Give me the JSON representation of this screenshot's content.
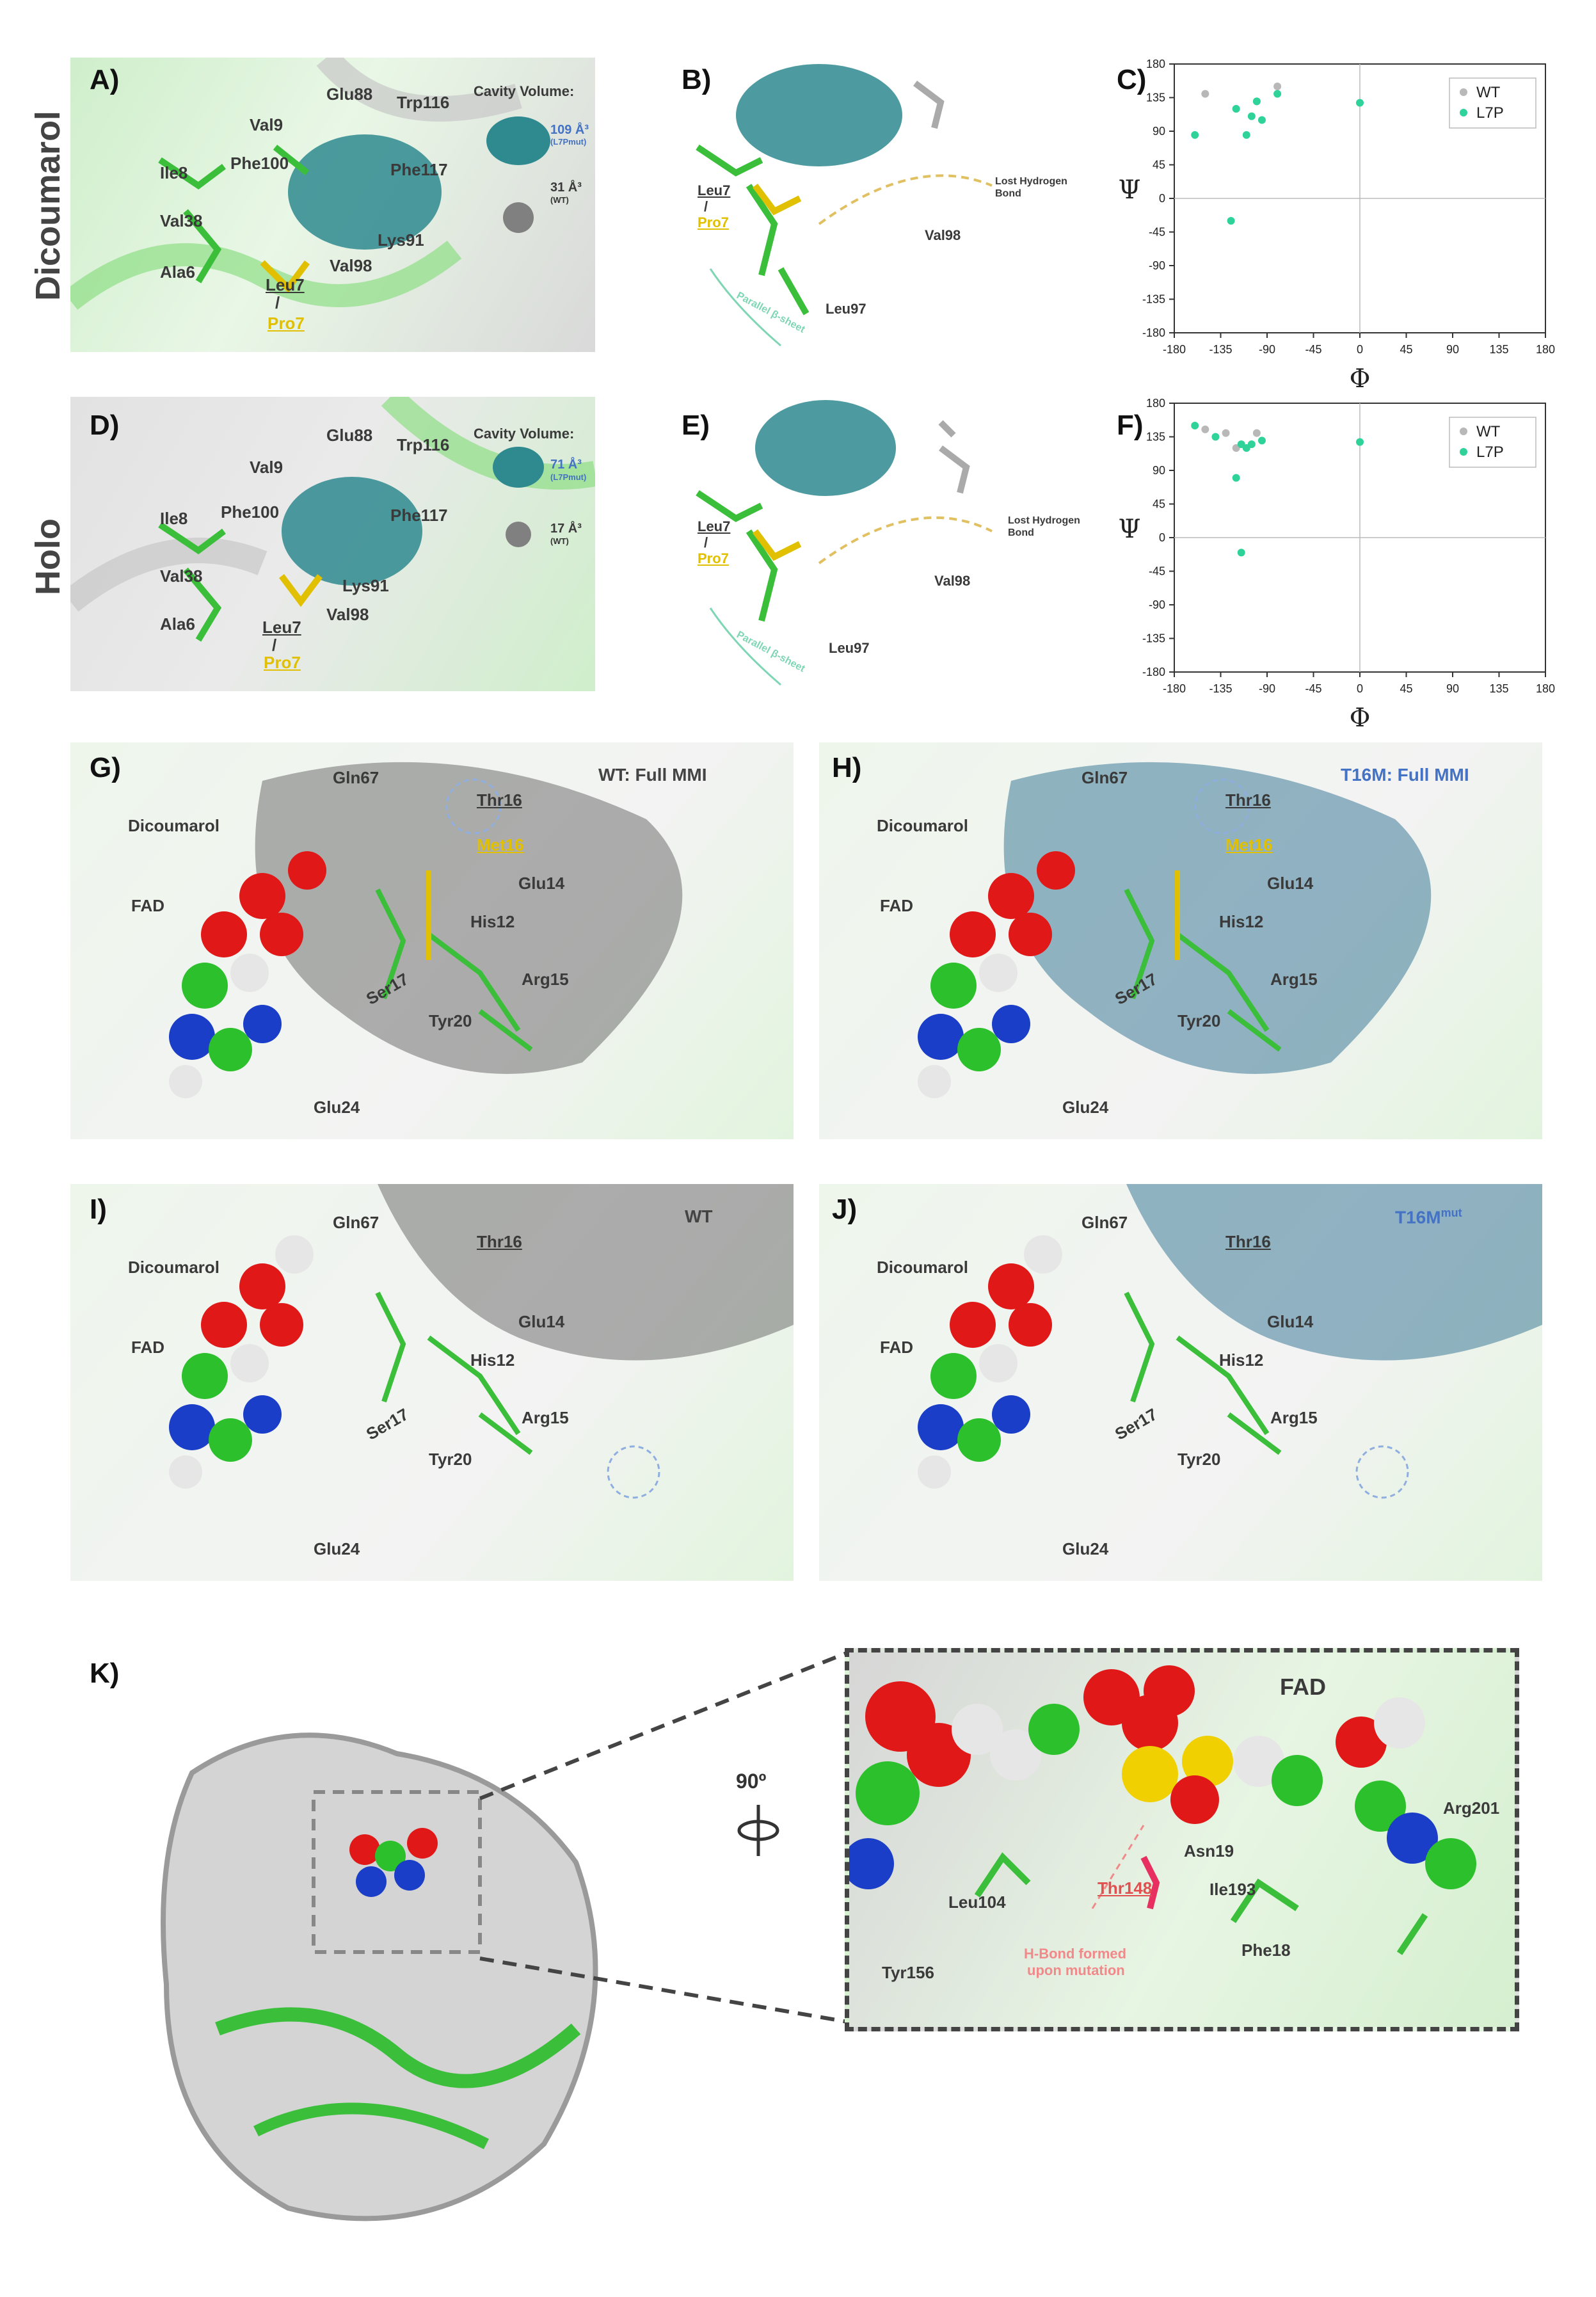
{
  "rows": {
    "dicoumarol": "Dicoumarol",
    "holo": "Holo"
  },
  "panels": {
    "A": {
      "letter": "A)",
      "labels": [
        "Glu88",
        "Trp116",
        "Val9",
        "Ile8",
        "Phe100",
        "Phe117",
        "Val38",
        "Lys91",
        "Ala6",
        "Leu7",
        "/",
        "Pro7",
        "Val98"
      ],
      "cavity_title": "Cavity Volume:",
      "cav_mut": "109 Å³",
      "cav_mut_sub": "(L7Pmut)",
      "cav_wt": "31 Å³",
      "cav_wt_sub": "(WT)"
    },
    "B": {
      "letter": "B)",
      "lost": "Lost Hydrogen",
      "lost2": "Bond",
      "leu7": "Leu7",
      "slash": "/",
      "pro7": "Pro7",
      "val98": "Val98",
      "leu97": "Leu97",
      "sheet": "Parallel β-sheet"
    },
    "D": {
      "letter": "D)",
      "labels": [
        "Glu88",
        "Trp116",
        "Val9",
        "Ile8",
        "Phe100",
        "Phe117",
        "Val38",
        "Lys91",
        "Val98",
        "Ala6",
        "Leu7",
        "/",
        "Pro7"
      ],
      "cavity_title": "Cavity Volume:",
      "cav_mut": "71 Å³",
      "cav_mut_sub": "(L7Pmut)",
      "cav_wt": "17 Å³",
      "cav_wt_sub": "(WT)"
    },
    "E": {
      "letter": "E)",
      "lost": "Lost Hydrogen",
      "lost2": "Bond",
      "leu7": "Leu7",
      "slash": "/",
      "pro7": "Pro7",
      "val98": "Val98",
      "leu97": "Leu97",
      "sheet": "Parallel β-sheet"
    },
    "G": {
      "letter": "G)",
      "title": "WT: Full MMI",
      "dicoumarol": "Dicoumarol",
      "fad": "FAD",
      "labels": [
        "Gln67",
        "Thr16",
        "Met16",
        "Glu14",
        "His12",
        "Arg15",
        "Ser17",
        "Tyr20",
        "Glu24"
      ]
    },
    "H": {
      "letter": "H)",
      "title": "T16M: Full MMI",
      "dicoumarol": "Dicoumarol",
      "fad": "FAD",
      "labels": [
        "Gln67",
        "Thr16",
        "Met16",
        "Glu14",
        "His12",
        "Arg15",
        "Ser17",
        "Tyr20",
        "Glu24"
      ]
    },
    "I": {
      "letter": "I)",
      "title": "WT",
      "dicoumarol": "Dicoumarol",
      "fad": "FAD",
      "labels": [
        "Gln67",
        "Thr16",
        "Glu14",
        "His12",
        "Arg15",
        "Ser17",
        "Tyr20",
        "Glu24"
      ]
    },
    "J": {
      "letter": "J)",
      "title": "T16M",
      "title_sup": "mut",
      "dicoumarol": "Dicoumarol",
      "fad": "FAD",
      "labels": [
        "Gln67",
        "Thr16",
        "Glu14",
        "His12",
        "Arg15",
        "Ser17",
        "Tyr20",
        "Glu24"
      ]
    },
    "K": {
      "letter": "K)",
      "rotation": "90º",
      "fad": "FAD",
      "labels": [
        "Arg201",
        "Asn19",
        "Ile193",
        "Thr148",
        "Leu104",
        "Phe18",
        "Tyr156"
      ],
      "hbond": "H-Bond formed",
      "hbond2": "upon mutation"
    }
  },
  "colors": {
    "wt": "#b8b8b8",
    "mut": "#2fd39a",
    "cavity": "#2e8a8f",
    "green": "#38c23a",
    "yellow": "#e0c000",
    "red": "#e74c3c"
  },
  "chart_data": [
    {
      "panel": "C",
      "letter": "C)",
      "type": "scatter",
      "xlabel": "Φ",
      "ylabel": "Ψ",
      "xlim": [
        -180,
        180
      ],
      "ylim": [
        -180,
        180
      ],
      "xticks": [
        -180,
        -135,
        -90,
        -45,
        0,
        45,
        90,
        135,
        180
      ],
      "yticks": [
        -180,
        -135,
        -90,
        -45,
        0,
        45,
        90,
        135,
        180
      ],
      "legend": [
        "WT",
        "L7P"
      ],
      "legend_position": "top-right",
      "series": [
        {
          "name": "WT",
          "color": "#b8b8b8",
          "points": [
            [
              -150,
              140
            ],
            [
              -100,
              130
            ],
            [
              -80,
              150
            ],
            [
              -120,
              120
            ]
          ]
        },
        {
          "name": "L7P",
          "color": "#2fd39a",
          "points": [
            [
              -160,
              85
            ],
            [
              -120,
              120
            ],
            [
              -105,
              110
            ],
            [
              -100,
              130
            ],
            [
              -95,
              105
            ],
            [
              -80,
              140
            ],
            [
              -110,
              85
            ],
            [
              -125,
              -30
            ],
            [
              0,
              128
            ]
          ]
        }
      ]
    },
    {
      "panel": "F",
      "letter": "F)",
      "type": "scatter",
      "xlabel": "Φ",
      "ylabel": "Ψ",
      "xlim": [
        -180,
        180
      ],
      "ylim": [
        -180,
        180
      ],
      "xticks": [
        -180,
        -135,
        -90,
        -45,
        0,
        45,
        90,
        135,
        180
      ],
      "yticks": [
        -180,
        -135,
        -90,
        -45,
        0,
        45,
        90,
        135,
        180
      ],
      "legend": [
        "WT",
        "L7P"
      ],
      "legend_position": "top-right",
      "series": [
        {
          "name": "WT",
          "color": "#b8b8b8",
          "points": [
            [
              -150,
              145
            ],
            [
              -130,
              140
            ],
            [
              -100,
              140
            ],
            [
              -120,
              120
            ]
          ]
        },
        {
          "name": "L7P",
          "color": "#2fd39a",
          "points": [
            [
              -160,
              150
            ],
            [
              -140,
              135
            ],
            [
              -115,
              125
            ],
            [
              -110,
              120
            ],
            [
              -105,
              125
            ],
            [
              -95,
              130
            ],
            [
              -120,
              80
            ],
            [
              -115,
              -20
            ],
            [
              0,
              128
            ]
          ]
        }
      ]
    }
  ]
}
